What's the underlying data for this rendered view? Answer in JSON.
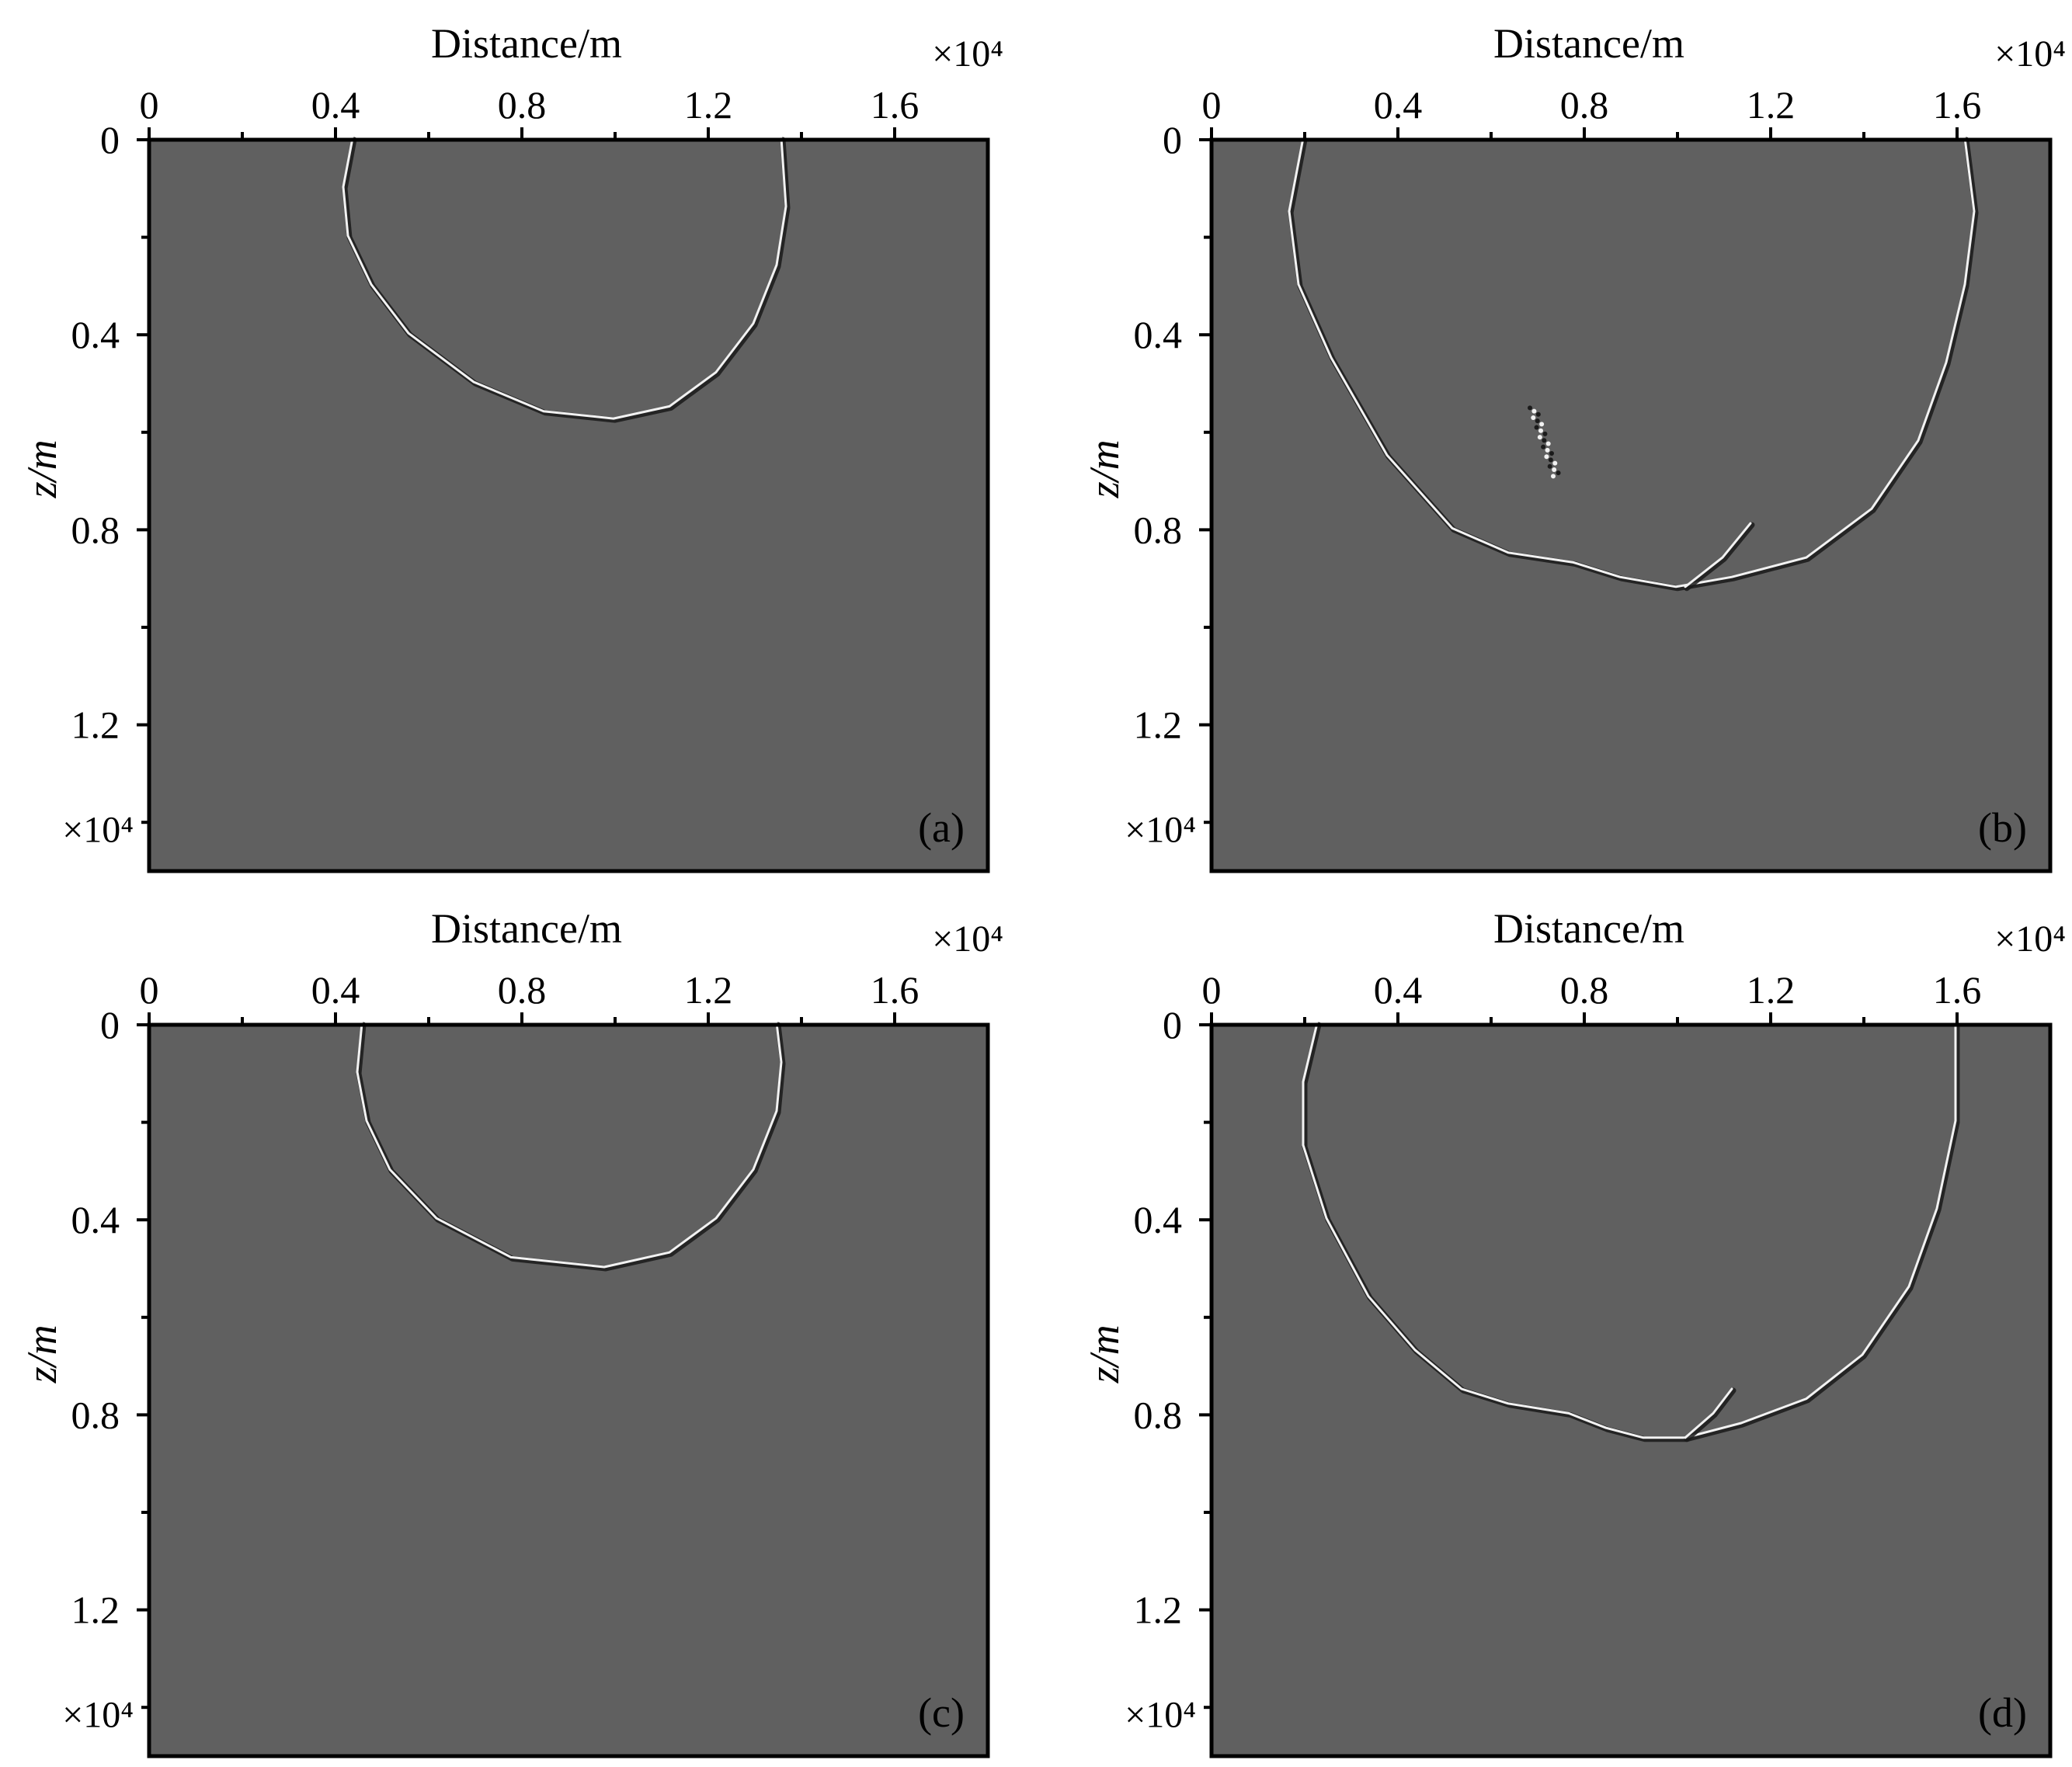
{
  "figure": {
    "background": "#ffffff",
    "panel_fill": "#606060",
    "frame_color": "#000000",
    "wave_color_light": "#f2f2f2",
    "wave_color_dark": "#1a1a1a"
  },
  "chart_data": [
    {
      "type": "image",
      "panel_label": "(a)",
      "title": "",
      "xlabel": "Distance/m",
      "ylabel": "z/m",
      "x_multiplier": "×10⁴",
      "y_multiplier": "×10⁴",
      "xlim": [
        0,
        1.8
      ],
      "ylim": [
        1.5,
        0
      ],
      "x_ticks": [
        0,
        0.4,
        0.8,
        1.2,
        1.6
      ],
      "y_ticks": [
        0,
        0.4,
        0.8,
        1.2
      ],
      "wavefront": [
        [
          0.44,
          0.0
        ],
        [
          0.42,
          0.1
        ],
        [
          0.43,
          0.2
        ],
        [
          0.48,
          0.3
        ],
        [
          0.56,
          0.4
        ],
        [
          0.7,
          0.5
        ],
        [
          0.85,
          0.56
        ],
        [
          1.0,
          0.575
        ],
        [
          1.12,
          0.55
        ],
        [
          1.22,
          0.48
        ],
        [
          1.3,
          0.38
        ],
        [
          1.35,
          0.26
        ],
        [
          1.37,
          0.14
        ],
        [
          1.36,
          0.0
        ]
      ]
    },
    {
      "type": "image",
      "panel_label": "(b)",
      "title": "",
      "xlabel": "Distance/m",
      "ylabel": "z/m",
      "x_multiplier": "×10⁴",
      "y_multiplier": "×10⁴",
      "xlim": [
        0,
        1.8
      ],
      "ylim": [
        1.5,
        0
      ],
      "x_ticks": [
        0,
        0.4,
        0.8,
        1.2,
        1.6
      ],
      "y_ticks": [
        0,
        0.4,
        0.8,
        1.2
      ],
      "wavefront": [
        [
          0.2,
          0.0
        ],
        [
          0.17,
          0.15
        ],
        [
          0.19,
          0.3
        ],
        [
          0.26,
          0.45
        ],
        [
          0.38,
          0.65
        ],
        [
          0.52,
          0.8
        ],
        [
          0.64,
          0.85
        ],
        [
          0.78,
          0.87
        ],
        [
          0.88,
          0.9
        ],
        [
          1.0,
          0.92
        ],
        [
          1.12,
          0.9
        ],
        [
          1.28,
          0.86
        ],
        [
          1.42,
          0.76
        ],
        [
          1.52,
          0.62
        ],
        [
          1.58,
          0.46
        ],
        [
          1.62,
          0.3
        ],
        [
          1.64,
          0.15
        ],
        [
          1.62,
          0.0
        ]
      ],
      "branch": [
        [
          1.02,
          0.92
        ],
        [
          1.1,
          0.86
        ],
        [
          1.16,
          0.79
        ]
      ],
      "scatter_cluster": [
        [
          0.69,
          0.55
        ],
        [
          0.74,
          0.69
        ]
      ]
    },
    {
      "type": "image",
      "panel_label": "(c)",
      "title": "",
      "xlabel": "Distance/m",
      "ylabel": "z/m",
      "x_multiplier": "×10⁴",
      "y_multiplier": "×10⁴",
      "xlim": [
        0,
        1.8
      ],
      "ylim": [
        1.5,
        0
      ],
      "x_ticks": [
        0,
        0.4,
        0.8,
        1.2,
        1.6
      ],
      "y_ticks": [
        0,
        0.4,
        0.8,
        1.2
      ],
      "wavefront": [
        [
          0.46,
          0.0
        ],
        [
          0.45,
          0.1
        ],
        [
          0.47,
          0.2
        ],
        [
          0.52,
          0.3
        ],
        [
          0.62,
          0.4
        ],
        [
          0.78,
          0.48
        ],
        [
          0.98,
          0.5
        ],
        [
          1.12,
          0.47
        ],
        [
          1.22,
          0.4
        ],
        [
          1.3,
          0.3
        ],
        [
          1.35,
          0.18
        ],
        [
          1.36,
          0.08
        ],
        [
          1.35,
          0.0
        ]
      ]
    },
    {
      "type": "image",
      "panel_label": "(d)",
      "title": "",
      "xlabel": "Distance/m",
      "ylabel": "z/m",
      "x_multiplier": "×10⁴",
      "y_multiplier": "×10⁴",
      "xlim": [
        0,
        1.8
      ],
      "ylim": [
        1.5,
        0
      ],
      "x_ticks": [
        0,
        0.4,
        0.8,
        1.2,
        1.6
      ],
      "y_ticks": [
        0,
        0.4,
        0.8,
        1.2
      ],
      "wavefront": [
        [
          0.23,
          0.0
        ],
        [
          0.2,
          0.12
        ],
        [
          0.2,
          0.25
        ],
        [
          0.25,
          0.4
        ],
        [
          0.34,
          0.56
        ],
        [
          0.44,
          0.67
        ],
        [
          0.54,
          0.75
        ],
        [
          0.64,
          0.78
        ],
        [
          0.77,
          0.8
        ],
        [
          0.85,
          0.83
        ],
        [
          0.93,
          0.85
        ],
        [
          1.02,
          0.85
        ],
        [
          1.14,
          0.82
        ],
        [
          1.28,
          0.77
        ],
        [
          1.4,
          0.68
        ],
        [
          1.5,
          0.54
        ],
        [
          1.56,
          0.38
        ],
        [
          1.6,
          0.2
        ],
        [
          1.6,
          0.0
        ]
      ],
      "branch": [
        [
          1.02,
          0.85
        ],
        [
          1.08,
          0.8
        ],
        [
          1.12,
          0.75
        ]
      ]
    }
  ]
}
